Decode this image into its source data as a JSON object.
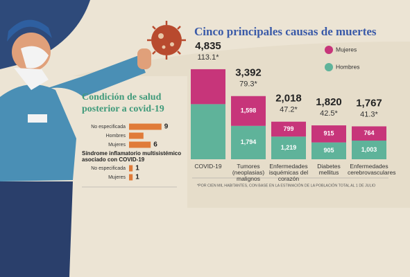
{
  "chart_data": [
    {
      "type": "stacked-bar",
      "title": "Cinco principales causas de muertes",
      "categories": [
        "COVID-19",
        "Tumores (neoplasias) malignos",
        "Enfermedades isquémicas del corazón",
        "Diabetes mellitus",
        "Enfermedades cerebrovasculares"
      ],
      "series": [
        {
          "name": "Hombres",
          "color": "#5fb39a",
          "values": [
            2960,
            1794,
            1219,
            905,
            1003
          ],
          "value_labels": [
            null,
            "1,794",
            "1,219",
            "905",
            "1,003"
          ]
        },
        {
          "name": "Mujeres",
          "color": "#c7357a",
          "values": [
            1875,
            1598,
            799,
            915,
            764
          ],
          "value_labels": [
            null,
            "1,598",
            "799",
            "915",
            "764"
          ]
        }
      ],
      "totals": [
        4835,
        3392,
        2018,
        1820,
        1767
      ],
      "total_labels": [
        "4,835",
        "3,392",
        "2,018",
        "1,820",
        "1,767"
      ],
      "rates": [
        113.1,
        79.3,
        47.2,
        42.5,
        41.3
      ],
      "rate_labels": [
        "113.1*",
        "79.3*",
        "47.2*",
        "42.5*",
        "41.3*"
      ],
      "footnote": "*POR CIEN MIL HABITANTES, CON BASE EN LA ESTIMACIÓN DE LA POBLACIÓN TOTAL AL 1 DE JULIO"
    },
    {
      "type": "hbar",
      "title": "Condición de salud posterior a covid-19",
      "color": "#e07b39",
      "categories": [
        "No especificada",
        "Hombres",
        "Mujeres"
      ],
      "values": [
        9,
        4,
        6
      ],
      "value_labels": [
        "9",
        null,
        "6"
      ]
    },
    {
      "type": "hbar",
      "title": "Síndrome inflamatorio multisistémico asociado con COVID-19",
      "color": "#e07b39",
      "categories": [
        "No especificada",
        "Mujeres"
      ],
      "values": [
        1,
        1
      ]
    }
  ]
}
